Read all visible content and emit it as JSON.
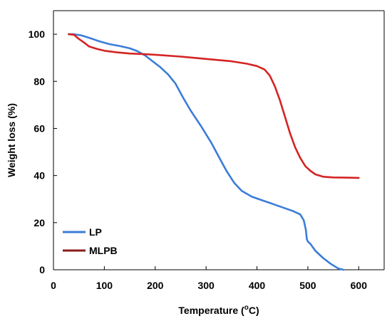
{
  "chart_data": {
    "type": "line",
    "xlabel": "Temperature (",
    "xlabel_sup": "o",
    "xlabel_end": "C)",
    "ylabel": "Weight loss (%)",
    "xlim": [
      0,
      650
    ],
    "ylim": [
      0,
      110
    ],
    "x_ticks": [
      0,
      100,
      200,
      300,
      400,
      500,
      600
    ],
    "y_ticks": [
      0,
      20,
      40,
      60,
      80,
      100
    ],
    "grid": false,
    "legend_position": "bottom-left",
    "series": [
      {
        "name": "LP",
        "color": "#3b7dd8",
        "x": [
          30,
          40,
          55,
          70,
          90,
          110,
          130,
          150,
          165,
          180,
          195,
          210,
          225,
          240,
          255,
          270,
          290,
          310,
          325,
          340,
          355,
          370,
          390,
          410,
          430,
          450,
          470,
          485,
          492,
          496,
          498,
          500,
          505,
          515,
          530,
          545,
          560,
          570
        ],
        "y": [
          100,
          100,
          99.5,
          98.5,
          97,
          95.8,
          95,
          94,
          92.8,
          91,
          88.5,
          86,
          83,
          79,
          73,
          67.5,
          61,
          54,
          48,
          42,
          37,
          33.5,
          31,
          29.5,
          28,
          26.5,
          25,
          23.5,
          21,
          17,
          13,
          12,
          11,
          8,
          5,
          2.5,
          0.5,
          0
        ]
      },
      {
        "name": "MLPB",
        "color": "#d42424",
        "x": [
          30,
          40,
          50,
          60,
          70,
          85,
          100,
          125,
          150,
          175,
          200,
          250,
          300,
          350,
          380,
          400,
          415,
          425,
          435,
          445,
          455,
          465,
          475,
          485,
          495,
          505,
          515,
          530,
          550,
          575,
          600
        ],
        "y": [
          100,
          99.8,
          98,
          96.5,
          94.8,
          93.8,
          93,
          92.3,
          91.8,
          91.6,
          91.3,
          90.5,
          89.5,
          88.5,
          87.5,
          86.5,
          85,
          82.5,
          78,
          72,
          65,
          58,
          52,
          47.5,
          44,
          42,
          40.5,
          39.5,
          39.2,
          39.1,
          39
        ]
      }
    ]
  }
}
